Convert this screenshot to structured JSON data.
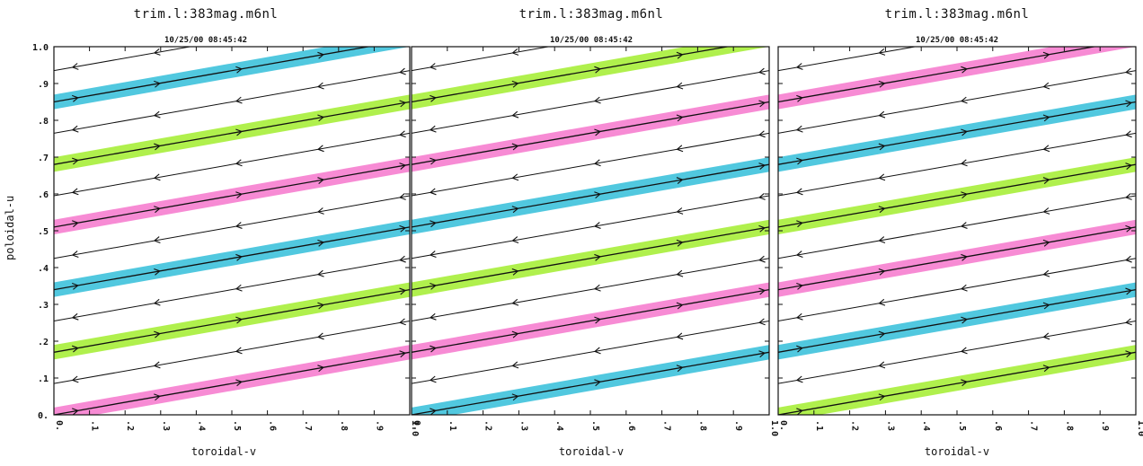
{
  "chart_data": [
    {
      "type": "line",
      "title": "trim.l:383mag.m6nl",
      "date": "10/25/00 08:45:42",
      "xlabel": "toroidal-v",
      "ylabel": "poloidal-u",
      "xlim": [
        0,
        1
      ],
      "ylim": [
        0,
        1
      ],
      "x_ticks": [
        "0.",
        ".1",
        ".2",
        ".3",
        ".4",
        ".5",
        ".6",
        ".7",
        ".8",
        ".9",
        "1.0"
      ],
      "y_ticks": [
        "0.",
        ".1",
        ".2",
        ".3",
        ".4",
        ".5",
        ".6",
        ".7",
        ".8",
        ".9",
        "1.0"
      ],
      "slope": 0.17,
      "series": [
        {
          "y_start": 0.0,
          "highlight": "magenta",
          "arrow": "right"
        },
        {
          "y_start": 0.085,
          "highlight": "none",
          "arrow": "left"
        },
        {
          "y_start": 0.17,
          "highlight": "green",
          "arrow": "right"
        },
        {
          "y_start": 0.255,
          "highlight": "none",
          "arrow": "left"
        },
        {
          "y_start": 0.34,
          "highlight": "cyan",
          "arrow": "right"
        },
        {
          "y_start": 0.425,
          "highlight": "none",
          "arrow": "left"
        },
        {
          "y_start": 0.51,
          "highlight": "magenta",
          "arrow": "right"
        },
        {
          "y_start": 0.595,
          "highlight": "none",
          "arrow": "left"
        },
        {
          "y_start": 0.68,
          "highlight": "green",
          "arrow": "right"
        },
        {
          "y_start": 0.765,
          "highlight": "none",
          "arrow": "left"
        },
        {
          "y_start": 0.85,
          "highlight": "cyan",
          "arrow": "right"
        },
        {
          "y_start": 0.935,
          "highlight": "none",
          "arrow": "left"
        }
      ]
    },
    {
      "type": "line",
      "title": "trim.l:383mag.m6nl",
      "date": "10/25/00 08:45:42",
      "xlabel": "toroidal-v",
      "ylabel": "",
      "xlim": [
        0,
        1
      ],
      "ylim": [
        0,
        1
      ],
      "x_ticks": [
        "0.",
        ".1",
        ".2",
        ".3",
        ".4",
        ".5",
        ".6",
        ".7",
        ".8",
        ".9",
        "1.0"
      ],
      "y_ticks": [],
      "slope": 0.17,
      "series": [
        {
          "y_start": 0.0,
          "highlight": "cyan",
          "arrow": "right"
        },
        {
          "y_start": 0.085,
          "highlight": "none",
          "arrow": "left"
        },
        {
          "y_start": 0.17,
          "highlight": "magenta",
          "arrow": "right"
        },
        {
          "y_start": 0.255,
          "highlight": "none",
          "arrow": "left"
        },
        {
          "y_start": 0.34,
          "highlight": "green",
          "arrow": "right"
        },
        {
          "y_start": 0.425,
          "highlight": "none",
          "arrow": "left"
        },
        {
          "y_start": 0.51,
          "highlight": "cyan",
          "arrow": "right"
        },
        {
          "y_start": 0.595,
          "highlight": "none",
          "arrow": "left"
        },
        {
          "y_start": 0.68,
          "highlight": "magenta",
          "arrow": "right"
        },
        {
          "y_start": 0.765,
          "highlight": "none",
          "arrow": "left"
        },
        {
          "y_start": 0.85,
          "highlight": "green",
          "arrow": "right"
        },
        {
          "y_start": 0.935,
          "highlight": "none",
          "arrow": "left"
        }
      ]
    },
    {
      "type": "line",
      "title": "trim.l:383mag.m6nl",
      "date": "10/25/00 08:45:42",
      "xlabel": "toroidal-v",
      "ylabel": "",
      "xlim": [
        0,
        1
      ],
      "ylim": [
        0,
        1
      ],
      "x_ticks": [
        "0.",
        ".1",
        ".2",
        ".3",
        ".4",
        ".5",
        ".6",
        ".7",
        ".8",
        ".9",
        "1.0"
      ],
      "y_ticks": [],
      "slope": 0.17,
      "series": [
        {
          "y_start": 0.0,
          "highlight": "green",
          "arrow": "right"
        },
        {
          "y_start": 0.085,
          "highlight": "none",
          "arrow": "left"
        },
        {
          "y_start": 0.17,
          "highlight": "cyan",
          "arrow": "right"
        },
        {
          "y_start": 0.255,
          "highlight": "none",
          "arrow": "left"
        },
        {
          "y_start": 0.34,
          "highlight": "magenta",
          "arrow": "right"
        },
        {
          "y_start": 0.425,
          "highlight": "none",
          "arrow": "left"
        },
        {
          "y_start": 0.51,
          "highlight": "green",
          "arrow": "right"
        },
        {
          "y_start": 0.595,
          "highlight": "none",
          "arrow": "left"
        },
        {
          "y_start": 0.68,
          "highlight": "cyan",
          "arrow": "right"
        },
        {
          "y_start": 0.765,
          "highlight": "none",
          "arrow": "left"
        },
        {
          "y_start": 0.85,
          "highlight": "magenta",
          "arrow": "right"
        },
        {
          "y_start": 0.935,
          "highlight": "none",
          "arrow": "left"
        }
      ]
    }
  ],
  "colors": {
    "magenta": "#f77fd0",
    "green": "#a8ef3a",
    "cyan": "#3fc3dc",
    "line": "#111111",
    "axis": "#111111"
  }
}
